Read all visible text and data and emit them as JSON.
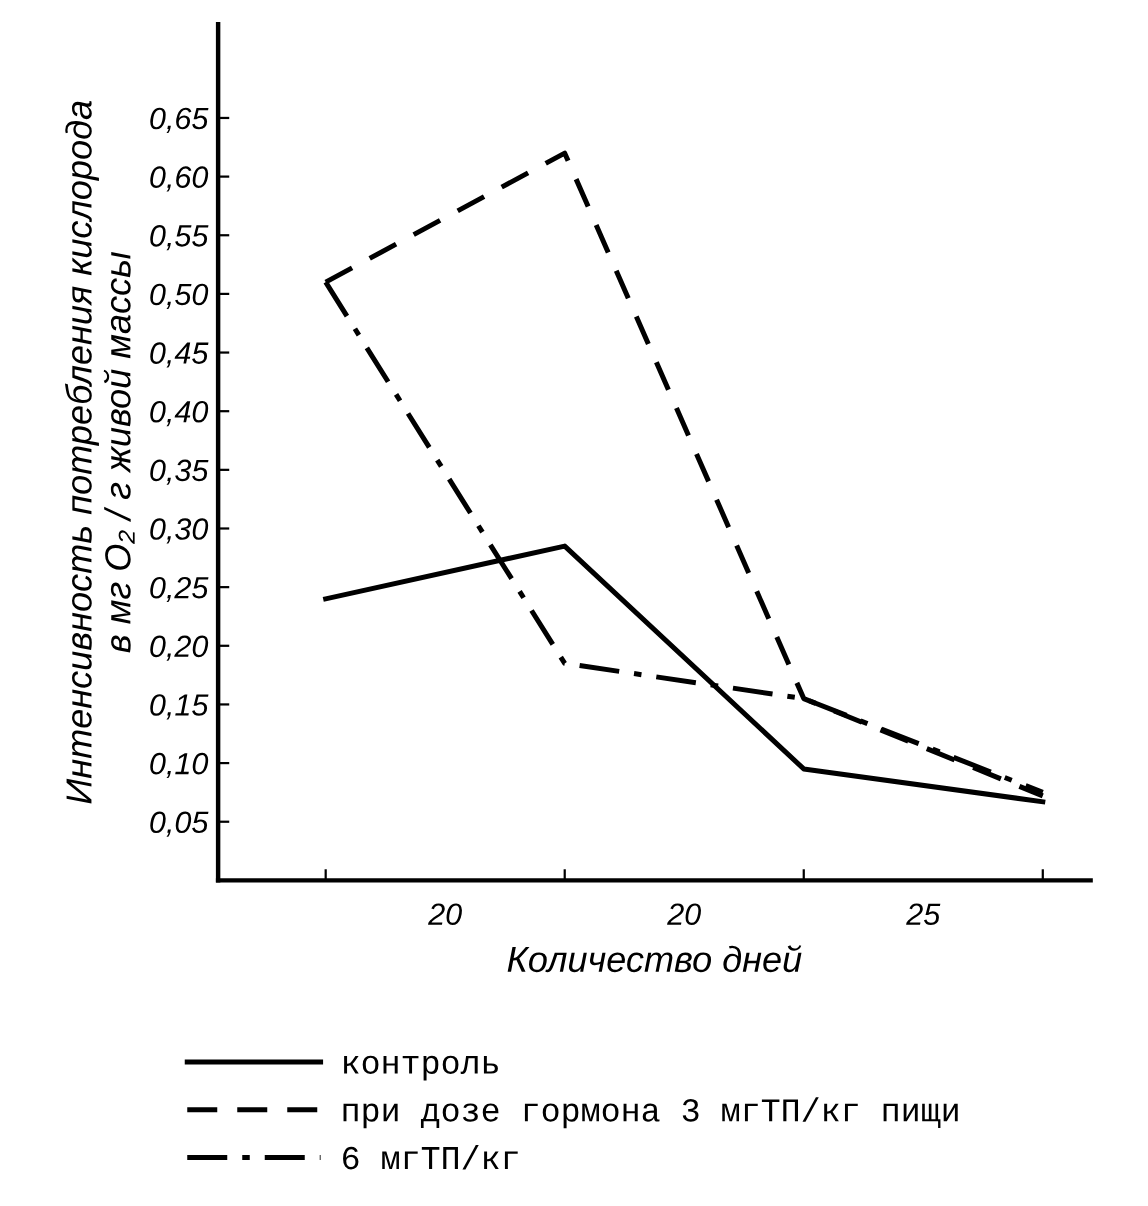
{
  "chart_data": {
    "type": "line",
    "xlabel": "Количество дней",
    "ylabel": "Интенсивность потребления кислорода\nв мг O₂ / г живой массы",
    "categories": [
      null,
      null,
      null,
      null
    ],
    "annotations": [
      "20",
      "20",
      "25"
    ],
    "ylim": [
      0,
      0.73
    ],
    "yticks": [
      {
        "value": 0.05,
        "label": "0,05"
      },
      {
        "value": 0.1,
        "label": "0,10"
      },
      {
        "value": 0.15,
        "label": "0,15"
      },
      {
        "value": 0.2,
        "label": "0,20"
      },
      {
        "value": 0.25,
        "label": "0,25"
      },
      {
        "value": 0.3,
        "label": "0,30"
      },
      {
        "value": 0.35,
        "label": "0,35"
      },
      {
        "value": 0.4,
        "label": "0,40"
      },
      {
        "value": 0.45,
        "label": "0,45"
      },
      {
        "value": 0.5,
        "label": "0,50"
      },
      {
        "value": 0.55,
        "label": "0,55"
      },
      {
        "value": 0.6,
        "label": "0,60"
      },
      {
        "value": 0.65,
        "label": "0,65"
      }
    ],
    "grid": false,
    "legend": "bottom",
    "series": [
      {
        "name": "контроль",
        "color": "#000000",
        "line_style": "solid",
        "values": [
          0.24,
          0.285,
          0.095,
          0.067
        ]
      },
      {
        "name": "при дозе гормона 3 мгТП/кг пищи",
        "color": "#000000",
        "line_style": "dashed",
        "values": [
          0.51,
          0.62,
          0.155,
          0.072
        ]
      },
      {
        "name": "6 мгТП/кг",
        "color": "#000000",
        "line_style": "dashdot",
        "values": [
          0.51,
          0.185,
          0.155,
          0.075
        ]
      }
    ]
  }
}
